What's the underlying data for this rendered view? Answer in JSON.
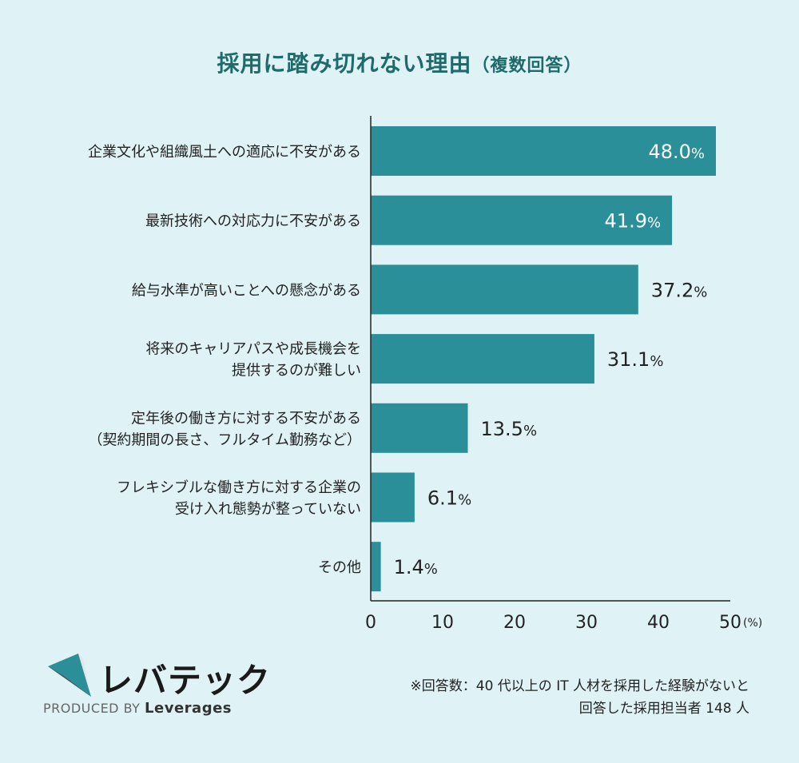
{
  "title": "採用に踏み切れない理由",
  "title_suffix": "（複数回答）",
  "chart_data": {
    "type": "bar",
    "orientation": "horizontal",
    "categories": [
      [
        "企業文化や組織風土への適応に不安がある"
      ],
      [
        "最新技術への対応力に不安がある"
      ],
      [
        "給与水準が高いことへの懸念がある"
      ],
      [
        "将来のキャリアパスや成長機会を",
        "提供するのが難しい"
      ],
      [
        "定年後の働き方に対する不安がある",
        "（契約期間の長さ、フルタイム勤務など）"
      ],
      [
        "フレキシブルな働き方に対する企業の",
        "受け入れ態勢が整っていない"
      ],
      [
        "その他"
      ]
    ],
    "values": [
      48.0,
      41.9,
      37.2,
      31.1,
      13.5,
      6.1,
      1.4
    ],
    "value_labels": [
      "48.0",
      "41.9",
      "37.2",
      "31.1",
      "13.5",
      "6.1",
      "1.4"
    ],
    "value_unit": "%",
    "xlim": [
      0,
      50
    ],
    "xticks": [
      "0",
      "10",
      "20",
      "30",
      "40",
      "50"
    ],
    "x_unit_label": "(%)",
    "bar_color": "#2a8f98"
  },
  "footnote": {
    "line1": "※回答数：40 代以上の IT 人材を採用した経験がないと",
    "line2": "回答した採用担当者 148 人"
  },
  "logo": {
    "name": "レバテック",
    "produced_by": "PRODUCED BY",
    "company": "Leverages"
  }
}
